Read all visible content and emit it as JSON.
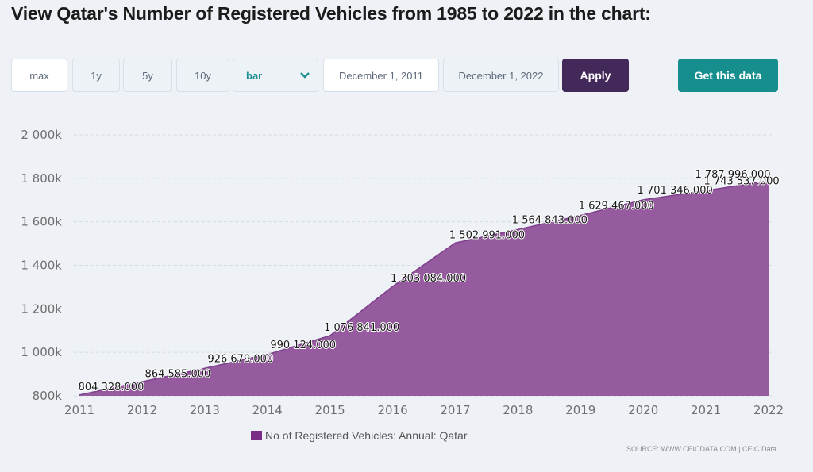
{
  "page_title": "View Qatar's Number of Registered Vehicles from 1985 to 2022 in the chart:",
  "controls": {
    "range_buttons": [
      "max",
      "1y",
      "5y",
      "10y"
    ],
    "chart_type": {
      "selected": "bar",
      "icon": "chevron-down-icon"
    },
    "date_start": "December 1, 2011",
    "date_end": "December 1, 2022",
    "apply_label": "Apply",
    "get_data_label": "Get this data"
  },
  "colors": {
    "area_fill": "#955b9e",
    "area_line": "#7e3f8c",
    "legend_swatch": "#7a2c86",
    "apply_bg": "#43285a",
    "get_data_bg": "#178e8e",
    "accent_teal": "#1f8f8f"
  },
  "chart_data": {
    "type": "area",
    "title": "",
    "xlabel": "",
    "ylabel": "",
    "categories": [
      "2011",
      "2012",
      "2013",
      "2014",
      "2015",
      "2016",
      "2017",
      "2018",
      "2019",
      "2020",
      "2021",
      "2022"
    ],
    "series": [
      {
        "name": "No of Registered Vehicles: Annual: Qatar",
        "values": [
          804328,
          864585,
          926679,
          990124,
          1076841,
          1303084,
          1502991,
          1564843,
          1629467,
          1701346,
          1743537,
          1787996
        ],
        "data_labels": [
          "804 328.000",
          "864 585.000",
          "926 679.000",
          "990 124.000",
          "1 076 841.000",
          "1 303 084.000",
          "1 502 991.000",
          "1 564 843.000",
          "1 629 467.000",
          "1 701 346.000",
          "1 743 537.000",
          "1 787 996.000"
        ]
      }
    ],
    "ylim": [
      800000,
      2000000
    ],
    "yticks": [
      800000,
      1000000,
      1200000,
      1400000,
      1600000,
      1800000,
      2000000
    ],
    "ytick_labels": [
      "800k",
      "1 000k",
      "1 200k",
      "1 400k",
      "1 600k",
      "1 800k",
      "2 000k"
    ],
    "grid": true,
    "legend": "bottom-center"
  },
  "source": "SOURCE: WWW.CEICDATA.COM | CEIC Data"
}
